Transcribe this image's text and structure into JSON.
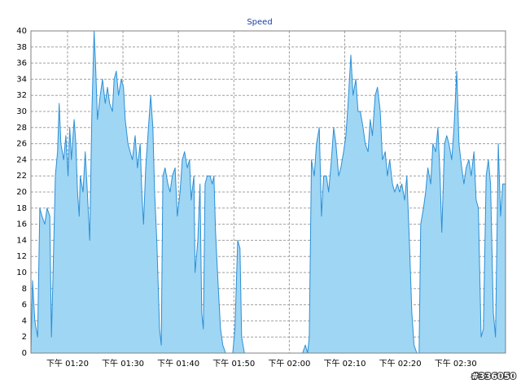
{
  "chart_data": {
    "type": "area",
    "title": "Speed",
    "watermark": "#336050",
    "color": "#9fd6f4",
    "line_color": "#2b8fd6",
    "grid": true,
    "xlim": [
      13.4,
      99.0
    ],
    "ylim": [
      0,
      40
    ],
    "yticks": [
      0,
      2,
      4,
      6,
      8,
      10,
      12,
      14,
      16,
      18,
      20,
      22,
      24,
      26,
      28,
      30,
      32,
      34,
      36,
      38,
      40
    ],
    "xticks": [
      {
        "value": 20,
        "label": "下午 01:20"
      },
      {
        "value": 30,
        "label": "下午 01:30"
      },
      {
        "value": 40,
        "label": "下午 01:40"
      },
      {
        "value": 50,
        "label": "下午 01:50"
      },
      {
        "value": 60,
        "label": "下午 02:00"
      },
      {
        "value": 70,
        "label": "下午 02:10"
      },
      {
        "value": 80,
        "label": "下午 02:20"
      },
      {
        "value": 90,
        "label": "下午 02:30"
      }
    ],
    "x": [
      13.4,
      13.7,
      14.1,
      14.6,
      15.0,
      15.4,
      15.9,
      16.3,
      16.8,
      17.1,
      17.4,
      17.8,
      18.2,
      18.5,
      18.8,
      19.3,
      19.7,
      20.1,
      20.4,
      20.7,
      21.2,
      21.5,
      21.8,
      22.1,
      22.3,
      22.8,
      23.2,
      23.5,
      24.0,
      24.4,
      24.8,
      25.1,
      25.4,
      25.9,
      26.3,
      26.8,
      27.2,
      27.6,
      28.1,
      28.4,
      28.8,
      29.2,
      29.7,
      30.1,
      30.4,
      30.9,
      31.3,
      31.7,
      32.2,
      32.6,
      33.1,
      33.4,
      33.7,
      34.1,
      34.5,
      35.0,
      35.4,
      35.7,
      36.1,
      36.6,
      36.9,
      37.2,
      37.6,
      38.1,
      38.5,
      38.9,
      39.4,
      39.8,
      40.3,
      40.7,
      41.1,
      41.6,
      42.0,
      42.3,
      42.8,
      43.0,
      43.5,
      43.9,
      44.2,
      44.5,
      44.8,
      45.2,
      45.7,
      46.1,
      46.4,
      46.7,
      47.2,
      47.6,
      48.0,
      48.5,
      49.8,
      50.2,
      50.7,
      51.1,
      51.4,
      51.9,
      62.4,
      62.9,
      63.3,
      63.6,
      64.0,
      64.5,
      64.9,
      65.4,
      65.8,
      66.2,
      66.7,
      67.1,
      67.6,
      68.0,
      68.4,
      68.9,
      69.3,
      69.8,
      70.2,
      70.6,
      71.1,
      71.5,
      72.0,
      72.4,
      72.8,
      73.3,
      73.7,
      74.2,
      74.6,
      75.0,
      75.5,
      75.9,
      76.4,
      76.8,
      77.3,
      77.7,
      78.1,
      78.6,
      79.0,
      79.5,
      79.9,
      80.3,
      80.8,
      81.2,
      81.7,
      82.1,
      82.5,
      83.0,
      83.4,
      83.7,
      84.2,
      84.6,
      85.0,
      85.5,
      85.9,
      86.4,
      86.8,
      87.2,
      87.5,
      88.0,
      88.4,
      88.8,
      89.3,
      89.7,
      90.2,
      90.6,
      91.1,
      91.5,
      91.9,
      92.4,
      92.8,
      93.3,
      93.7,
      94.1,
      94.6,
      95.0,
      95.5,
      95.9,
      96.3,
      96.8,
      97.2,
      97.7,
      98.1,
      98.5,
      99.0
    ],
    "values": [
      0,
      9,
      4,
      2,
      18,
      17,
      16,
      18,
      17,
      2,
      10,
      22,
      25,
      31,
      26,
      24,
      27,
      22,
      28,
      24,
      29,
      26,
      20,
      17,
      22,
      20,
      25,
      21,
      14,
      30,
      40,
      35,
      29,
      32,
      34,
      31,
      33,
      31,
      30,
      34,
      35,
      32,
      34,
      33,
      29,
      26,
      25,
      24,
      27,
      23,
      26,
      20,
      16,
      23,
      27,
      32,
      28,
      20,
      14,
      3,
      1,
      22,
      23,
      21,
      20,
      22,
      23,
      17,
      20,
      24,
      25,
      23,
      24,
      19,
      22,
      10,
      14,
      21,
      5,
      3,
      21,
      22,
      22,
      21,
      22,
      15,
      8,
      3,
      1,
      0,
      0,
      3,
      14,
      13,
      2,
      0,
      0,
      1,
      0,
      2,
      24,
      22,
      26,
      28,
      17,
      22,
      22,
      20,
      24,
      28,
      26,
      22,
      23,
      25,
      27,
      31,
      37,
      32,
      34,
      30,
      30,
      28,
      26,
      25,
      29,
      27,
      32,
      33,
      30,
      24,
      25,
      22,
      24,
      21,
      20,
      21,
      20,
      21,
      19,
      22,
      13,
      5,
      1,
      0,
      0,
      16,
      18,
      20,
      23,
      21,
      26,
      25,
      28,
      22,
      15,
      26,
      27,
      26,
      24,
      28,
      35,
      26,
      23,
      21,
      23,
      24,
      22,
      25,
      19,
      18,
      2,
      3,
      22,
      24,
      21,
      5,
      2,
      26,
      17,
      21,
      21
    ]
  }
}
